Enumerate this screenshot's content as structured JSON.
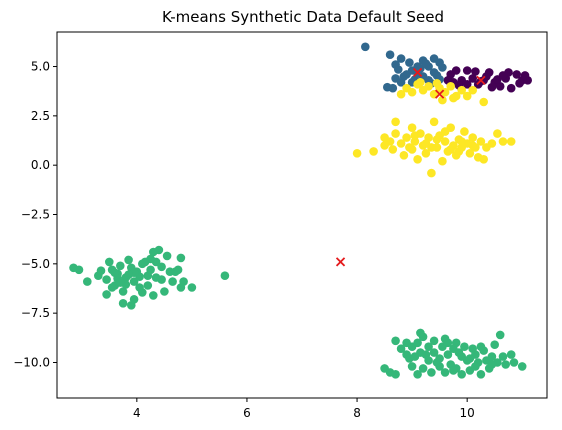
{
  "chart_data": {
    "type": "scatter",
    "title": "K-means Synthetic Data Default Seed",
    "xlabel": "",
    "ylabel": "",
    "xlim": [
      2.55,
      11.45
    ],
    "ylim": [
      -11.8,
      6.75
    ],
    "xticks": [
      4,
      6,
      8,
      10
    ],
    "yticks": [
      5.0,
      2.5,
      0.0,
      -2.5,
      -5.0,
      -7.5,
      -10.0
    ],
    "xtick_labels": [
      "4",
      "6",
      "8",
      "10"
    ],
    "ytick_labels": [
      "5.0",
      "2.5",
      "0.0",
      "−2.5",
      "−5.0",
      "−7.5",
      "−10.0"
    ],
    "grid": false,
    "legend": "none",
    "series": [
      {
        "color": "#440154",
        "marker": "circle",
        "points": [
          [
            9.7,
            4.6
          ],
          [
            9.9,
            4.3
          ],
          [
            10.1,
            4.4
          ],
          [
            10.3,
            4.3
          ],
          [
            10.5,
            4.2
          ],
          [
            10.7,
            4.4
          ],
          [
            10.9,
            4.6
          ],
          [
            11.0,
            4.3
          ],
          [
            11.1,
            4.3
          ],
          [
            10.4,
            4.7
          ],
          [
            10.2,
            4.1
          ],
          [
            9.8,
            4.8
          ],
          [
            9.65,
            4.3
          ],
          [
            10.6,
            4.0
          ],
          [
            10.8,
            3.9
          ],
          [
            10.0,
            4.1
          ],
          [
            10.35,
            4.5
          ],
          [
            10.75,
            4.7
          ],
          [
            11.05,
            4.55
          ],
          [
            10.55,
            4.35
          ],
          [
            10.15,
            4.75
          ],
          [
            9.85,
            4.05
          ],
          [
            10.45,
            3.95
          ],
          [
            10.25,
            4.25
          ],
          [
            10.0,
            4.8
          ],
          [
            10.65,
            4.55
          ],
          [
            9.75,
            4.2
          ],
          [
            10.95,
            4.15
          ]
        ]
      },
      {
        "color": "#31688e",
        "marker": "circle",
        "points": [
          [
            8.15,
            6.0
          ],
          [
            8.6,
            5.6
          ],
          [
            8.8,
            5.4
          ],
          [
            9.2,
            5.3
          ],
          [
            9.4,
            5.4
          ],
          [
            9.5,
            5.2
          ],
          [
            9.3,
            5.0
          ],
          [
            9.1,
            5.0
          ],
          [
            9.0,
            4.8
          ],
          [
            8.9,
            4.6
          ],
          [
            8.7,
            4.4
          ],
          [
            8.8,
            4.2
          ],
          [
            9.0,
            4.2
          ],
          [
            9.2,
            4.5
          ],
          [
            9.4,
            4.7
          ],
          [
            9.3,
            4.3
          ],
          [
            9.15,
            4.9
          ],
          [
            8.65,
            3.9
          ],
          [
            8.55,
            3.95
          ],
          [
            9.45,
            4.55
          ],
          [
            9.55,
            4.95
          ],
          [
            9.05,
            4.35
          ],
          [
            8.95,
            5.2
          ],
          [
            8.75,
            4.85
          ],
          [
            9.35,
            4.15
          ],
          [
            9.25,
            5.15
          ],
          [
            8.85,
            4.5
          ],
          [
            9.5,
            4.35
          ],
          [
            9.1,
            4.65
          ],
          [
            8.7,
            5.1
          ]
        ]
      },
      {
        "color": "#35b779",
        "marker": "circle",
        "points": [
          [
            2.85,
            -5.2
          ],
          [
            2.95,
            -5.3
          ],
          [
            3.1,
            -5.9
          ],
          [
            3.3,
            -5.6
          ],
          [
            3.45,
            -5.8
          ],
          [
            3.5,
            -4.9
          ],
          [
            3.55,
            -5.3
          ],
          [
            3.6,
            -6.1
          ],
          [
            3.65,
            -5.5
          ],
          [
            3.7,
            -5.1
          ],
          [
            3.75,
            -6.4
          ],
          [
            3.8,
            -5.7
          ],
          [
            3.85,
            -4.8
          ],
          [
            3.9,
            -5.2
          ],
          [
            3.95,
            -5.9
          ],
          [
            3.75,
            -7.0
          ],
          [
            3.9,
            -7.1
          ],
          [
            3.95,
            -6.8
          ],
          [
            4.0,
            -5.4
          ],
          [
            4.05,
            -6.2
          ],
          [
            4.1,
            -5.0
          ],
          [
            4.15,
            -4.9
          ],
          [
            4.2,
            -5.6
          ],
          [
            4.25,
            -5.3
          ],
          [
            4.3,
            -4.4
          ],
          [
            4.35,
            -4.9
          ],
          [
            4.4,
            -4.3
          ],
          [
            4.45,
            -5.8
          ],
          [
            4.3,
            -6.6
          ],
          [
            4.5,
            -6.4
          ],
          [
            4.55,
            -4.6
          ],
          [
            4.6,
            -5.4
          ],
          [
            4.7,
            -5.4
          ],
          [
            4.75,
            -5.3
          ],
          [
            4.8,
            -4.7
          ],
          [
            4.85,
            -5.9
          ],
          [
            4.8,
            -6.2
          ],
          [
            5.0,
            -6.2
          ],
          [
            5.6,
            -5.6
          ],
          [
            3.65,
            -5.75
          ],
          [
            3.8,
            -6.05
          ],
          [
            4.05,
            -5.65
          ],
          [
            4.2,
            -6.1
          ],
          [
            3.55,
            -6.2
          ],
          [
            3.35,
            -5.35
          ],
          [
            4.45,
            -5.15
          ],
          [
            3.95,
            -5.45
          ],
          [
            4.65,
            -5.9
          ],
          [
            3.7,
            -5.95
          ],
          [
            4.1,
            -6.45
          ],
          [
            3.45,
            -6.55
          ],
          [
            4.35,
            -5.7
          ],
          [
            3.85,
            -5.55
          ],
          [
            4.25,
            -4.75
          ],
          [
            3.6,
            -5.45
          ]
        ]
      },
      {
        "color": "#35b779",
        "marker": "circle",
        "points": [
          [
            8.5,
            -10.3
          ],
          [
            8.6,
            -10.5
          ],
          [
            8.7,
            -10.6
          ],
          [
            8.7,
            -8.9
          ],
          [
            8.8,
            -9.3
          ],
          [
            8.9,
            -9.0
          ],
          [
            8.9,
            -9.6
          ],
          [
            9.0,
            -9.2
          ],
          [
            9.0,
            -10.2
          ],
          [
            9.1,
            -9.0
          ],
          [
            9.1,
            -10.6
          ],
          [
            9.15,
            -9.5
          ],
          [
            9.2,
            -10.3
          ],
          [
            9.2,
            -8.7
          ],
          [
            9.3,
            -9.2
          ],
          [
            9.3,
            -9.9
          ],
          [
            9.35,
            -10.5
          ],
          [
            9.4,
            -9.5
          ],
          [
            9.4,
            -8.9
          ],
          [
            9.5,
            -10.2
          ],
          [
            9.5,
            -9.8
          ],
          [
            9.55,
            -9.2
          ],
          [
            9.6,
            -10.5
          ],
          [
            9.6,
            -8.8
          ],
          [
            9.65,
            -9.6
          ],
          [
            9.7,
            -10.1
          ],
          [
            9.75,
            -9.3
          ],
          [
            9.8,
            -10.3
          ],
          [
            9.8,
            -9.0
          ],
          [
            9.9,
            -9.7
          ],
          [
            9.9,
            -10.6
          ],
          [
            9.95,
            -9.2
          ],
          [
            10.0,
            -9.9
          ],
          [
            10.05,
            -10.4
          ],
          [
            10.1,
            -9.3
          ],
          [
            10.15,
            -9.6
          ],
          [
            10.2,
            -10.0
          ],
          [
            10.25,
            -10.6
          ],
          [
            10.3,
            -9.4
          ],
          [
            10.35,
            -9.9
          ],
          [
            10.4,
            -10.3
          ],
          [
            10.45,
            -9.7
          ],
          [
            10.5,
            -9.1
          ],
          [
            10.55,
            -10.0
          ],
          [
            10.6,
            -8.6
          ],
          [
            10.65,
            -9.7
          ],
          [
            10.7,
            -10.1
          ],
          [
            10.8,
            -9.6
          ],
          [
            10.85,
            -10.0
          ],
          [
            11.0,
            -10.2
          ],
          [
            9.05,
            -9.7
          ],
          [
            9.25,
            -9.6
          ],
          [
            9.45,
            -10.0
          ],
          [
            9.65,
            -9.0
          ],
          [
            9.85,
            -9.5
          ],
          [
            10.05,
            -9.8
          ],
          [
            10.25,
            -9.2
          ],
          [
            10.45,
            -10.1
          ],
          [
            9.15,
            -8.5
          ],
          [
            8.95,
            -9.8
          ],
          [
            9.75,
            -10.4
          ],
          [
            10.15,
            -10.2
          ]
        ]
      },
      {
        "color": "#fde725",
        "marker": "circle",
        "points": [
          [
            8.0,
            0.6
          ],
          [
            8.3,
            0.7
          ],
          [
            8.5,
            1.0
          ],
          [
            8.5,
            1.4
          ],
          [
            8.6,
            1.2
          ],
          [
            8.65,
            0.8
          ],
          [
            8.7,
            2.2
          ],
          [
            8.7,
            1.6
          ],
          [
            8.8,
            1.1
          ],
          [
            8.85,
            0.5
          ],
          [
            8.9,
            1.4
          ],
          [
            9.0,
            0.8
          ],
          [
            9.0,
            1.9
          ],
          [
            9.05,
            1.2
          ],
          [
            9.1,
            0.3
          ],
          [
            9.15,
            1.6
          ],
          [
            9.2,
            1.0
          ],
          [
            9.25,
            0.6
          ],
          [
            9.3,
            1.4
          ],
          [
            9.35,
            -0.4
          ],
          [
            9.4,
            2.2
          ],
          [
            9.45,
            0.9
          ],
          [
            9.5,
            1.5
          ],
          [
            9.55,
            0.2
          ],
          [
            9.6,
            1.2
          ],
          [
            9.65,
            0.7
          ],
          [
            9.7,
            1.9
          ],
          [
            9.75,
            1.0
          ],
          [
            9.8,
            0.5
          ],
          [
            9.85,
            1.3
          ],
          [
            9.9,
            0.9
          ],
          [
            9.95,
            1.7
          ],
          [
            10.0,
            1.1
          ],
          [
            10.05,
            0.6
          ],
          [
            10.1,
            1.4
          ],
          [
            10.15,
            0.9
          ],
          [
            10.2,
            0.4
          ],
          [
            10.25,
            1.2
          ],
          [
            10.3,
            0.3
          ],
          [
            10.35,
            0.9
          ],
          [
            10.45,
            1.1
          ],
          [
            10.55,
            1.6
          ],
          [
            10.65,
            1.2
          ],
          [
            10.8,
            1.2
          ],
          [
            8.8,
            3.6
          ],
          [
            8.9,
            3.9
          ],
          [
            9.0,
            3.7
          ],
          [
            9.1,
            4.1
          ],
          [
            9.2,
            3.8
          ],
          [
            9.3,
            4.0
          ],
          [
            9.4,
            3.6
          ],
          [
            9.5,
            3.9
          ],
          [
            9.6,
            3.7
          ],
          [
            9.7,
            4.0
          ],
          [
            9.8,
            3.5
          ],
          [
            9.9,
            3.8
          ],
          [
            10.0,
            3.5
          ],
          [
            10.1,
            3.8
          ],
          [
            10.3,
            3.2
          ],
          [
            9.55,
            3.3
          ],
          [
            9.75,
            3.4
          ],
          [
            8.95,
            0.9
          ],
          [
            9.25,
            1.1
          ],
          [
            9.45,
            1.3
          ],
          [
            9.7,
            0.8
          ],
          [
            9.9,
            1.2
          ],
          [
            10.1,
            1.0
          ],
          [
            9.35,
            0.9
          ],
          [
            9.05,
            1.5
          ],
          [
            9.6,
            1.7
          ],
          [
            9.85,
            0.7
          ],
          [
            9.15,
            4.2
          ],
          [
            9.45,
            4.15
          ]
        ]
      }
    ],
    "centroids": {
      "color": "#e41a1c",
      "marker": "x",
      "points": [
        [
          9.1,
          4.7
        ],
        [
          9.5,
          3.6
        ],
        [
          10.25,
          4.3
        ],
        [
          7.7,
          -4.9
        ]
      ]
    }
  }
}
